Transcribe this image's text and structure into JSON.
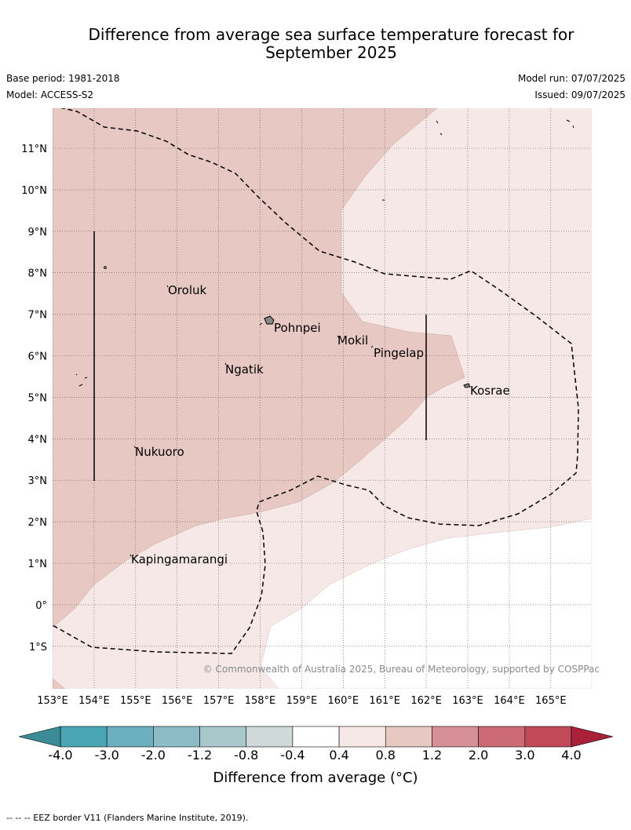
{
  "title": {
    "line1": "Difference from average sea surface temperature forecast for",
    "line2": "September 2025"
  },
  "meta": {
    "base_period": "Base period: 1981-2018",
    "model": "Model: ACCESS-S2",
    "model_run": "Model run: 07/07/2025",
    "issued": "Issued: 09/07/2025"
  },
  "map": {
    "lon_labels": [
      "153°E",
      "154°E",
      "155°E",
      "156°E",
      "157°E",
      "158°E",
      "159°E",
      "160°E",
      "161°E",
      "162°E",
      "163°E",
      "164°E",
      "165°E"
    ],
    "lat_labels": [
      "11°N",
      "10°N",
      "9°N",
      "8°N",
      "7°N",
      "6°N",
      "5°N",
      "4°N",
      "3°N",
      "2°N",
      "1°N",
      "0°",
      "1°S"
    ],
    "places": [
      "Oroluk",
      "Pohnpei",
      "Mokil",
      "Pingelap",
      "Ngatik",
      "Kosrae",
      "Nukuoro",
      "Kapingamarangi"
    ],
    "copyright": "© Commonwealth of Australia 2025, Bureau of Meteorology, supported by COSPPac",
    "fill_colors": {
      "band_0_4_0_8": "#f5e8e7",
      "band_0_8_1_2": "#e8c8c2",
      "below_0_4": "#ffffff"
    }
  },
  "colorbar": {
    "ticks": [
      "-4.0",
      "-3.0",
      "-2.0",
      "-1.2",
      "-0.8",
      "-0.4",
      "0.4",
      "0.8",
      "1.2",
      "2.0",
      "3.0",
      "4.0"
    ],
    "colors": [
      "#3c8c97",
      "#4aa5b4",
      "#6cb0c0",
      "#8cbcc6",
      "#a9c8cb",
      "#d0d9d9",
      "#ffffff",
      "#f5e8e7",
      "#e8c8c2",
      "#d89098",
      "#cc6a75",
      "#c04a58",
      "#a8203a"
    ],
    "label": "Difference from average (°C)"
  },
  "footer": "--  --  -- EEZ border V11 (Flanders Marine Institute, 2019)."
}
